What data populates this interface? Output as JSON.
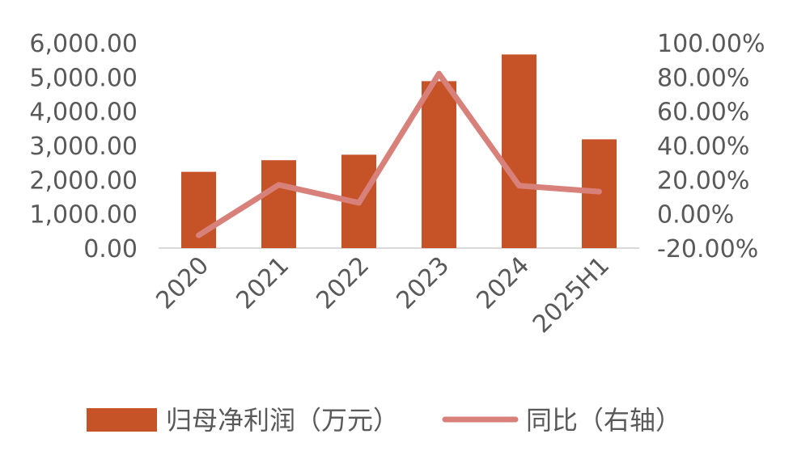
{
  "chart_data": {
    "type": "bar",
    "categories": [
      "2020",
      "2021",
      "2022",
      "2023",
      "2024",
      "2025H1"
    ],
    "series": [
      {
        "name": "归母净利润（万元）",
        "type": "bar",
        "axis": "left",
        "color": "#C65228",
        "values": [
          2230,
          2570,
          2730,
          4880,
          5660,
          3180
        ]
      },
      {
        "name": "同比（右轴）",
        "type": "line",
        "axis": "right",
        "color": "#D7817A",
        "values": [
          -12.5,
          17.0,
          6.5,
          82.0,
          16.5,
          13.0
        ]
      }
    ],
    "y_left": {
      "min": 0,
      "max": 6000,
      "ticks": [
        0,
        1000,
        2000,
        3000,
        4000,
        5000,
        6000
      ],
      "tick_labels": [
        "0.00",
        "1,000.00",
        "2,000.00",
        "3,000.00",
        "4,000.00",
        "5,000.00",
        "6,000.00"
      ]
    },
    "y_right": {
      "min": -20,
      "max": 100,
      "ticks": [
        -20,
        0,
        20,
        40,
        60,
        80,
        100
      ],
      "tick_labels": [
        "-20.00%",
        "0.00%",
        "20.00%",
        "40.00%",
        "60.00%",
        "80.00%",
        "100.00%"
      ]
    },
    "legend_position": "bottom",
    "grid": false
  }
}
